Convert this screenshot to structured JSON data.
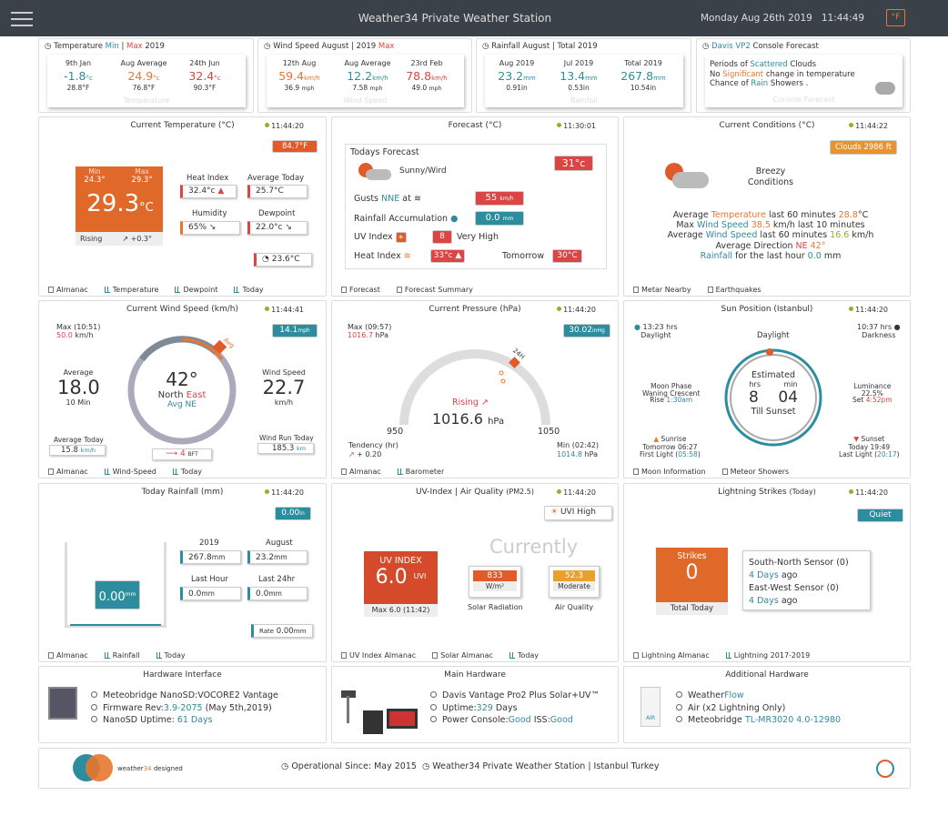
{
  "header": {
    "title": "Weather34 Private Weather Station",
    "date": "Monday Aug 26th 2019",
    "time": "11:44:49",
    "unit": "°F"
  },
  "top": {
    "temp": {
      "title_a": "Temperature",
      "title_min": "Min",
      "title_sep": "|",
      "title_max": "Max",
      "title_year": "2019",
      "c1": {
        "label": "9th Jan",
        "value": "-1.8",
        "unit": "°c",
        "sub": "28.8°F"
      },
      "c2": {
        "label": "Aug Average",
        "value": "24.9",
        "unit": "°c",
        "sub": "76.8°F"
      },
      "c3": {
        "label": "24th Jun",
        "value": "32.4",
        "unit": "°c",
        "sub": "90.3°F"
      },
      "wm": "Temperature"
    },
    "wind": {
      "title": "Wind Speed August | 2019",
      "title_max": "Max",
      "c1": {
        "label": "12th Aug",
        "value": "59.4",
        "unit": "km/h",
        "sub": "36.9",
        "subu": "mph"
      },
      "c2": {
        "label": "Aug Average",
        "value": "12.2",
        "unit": "km/h",
        "sub": "7.58",
        "subu": "mph"
      },
      "c3": {
        "label": "23rd Feb",
        "value": "78.8",
        "unit": "km/h",
        "sub": "49.0",
        "subu": "mph"
      },
      "wm": "Wind Speed"
    },
    "rain": {
      "title": "Rainfall August | Total 2019",
      "c1": {
        "label": "Aug 2019",
        "value": "23.2",
        "unit": "mm",
        "sub": "0.91in"
      },
      "c2": {
        "label": "Jul 2019",
        "value": "13.4",
        "unit": "mm",
        "sub": "0.53in"
      },
      "c3": {
        "label": "Total 2019",
        "value": "267.8",
        "unit": "mm",
        "sub": "10.54in"
      },
      "wm": "Rainfall"
    },
    "console": {
      "title_a": "Davis VP2",
      "title_b": "Console Forecast",
      "l1a": "Periods of",
      "l1b": "Scattered",
      "l1c": "Clouds",
      "l2a": "No",
      "l2b": "Significant",
      "l2c": "change in temperature",
      "l3a": "Chance of",
      "l3b": "Rain",
      "l3c": "Showers .",
      "wm": "Console Forecast"
    }
  },
  "p_temp": {
    "title": "Current Temperature (°C)",
    "time": "11:44:20",
    "badge": "84.7°F",
    "min_l": "Min",
    "min_v": "24.3°",
    "max_l": "Max",
    "max_v": "29.3°",
    "cur": "29.3",
    "cur_u": "°C",
    "trend": "Rising",
    "trend_v": "+0.3°",
    "hi_l": "Heat Index",
    "hi_v": "32.4°c",
    "avg_l": "Average Today",
    "avg_v": "25.7°C",
    "hum_l": "Humidity",
    "hum_v": "65%",
    "dew_l": "Dewpoint",
    "dew_v": "22.0°c",
    "feel_v": "23.6°C",
    "links": [
      "Almanac",
      "Temperature",
      "Dewpoint",
      "Today"
    ]
  },
  "p_fc": {
    "title": "Forecast (°C)",
    "time": "11:30:01",
    "today": "Todays Forecast",
    "desc": "Sunny/Wird",
    "temp": "31°c",
    "gust_l": "Gusts",
    "gust_d": "NNE",
    "gust_at": "at",
    "gust_v": "55",
    "gust_u": "km/h",
    "rain_l": "Rainfall Accumulation",
    "rain_v": "0.0",
    "rain_u": "mm",
    "uv_l": "UV Index",
    "uv_v": "8",
    "uv_d": "Very High",
    "hi_l": "Heat Index",
    "hi_v": "33°c",
    "tom_l": "Tomorrow",
    "tom_v": "30°C",
    "links": [
      "Forecast",
      "Forecast Summary"
    ]
  },
  "p_cond": {
    "title": "Current Conditions (°C)",
    "time": "11:44:22",
    "badge": "Clouds 2986 ft",
    "desc1": "Breezy",
    "desc2": "Conditions",
    "l1a": "Average",
    "l1b": "Temperature",
    "l1c": "last 60 minutes",
    "l1d": "28.8",
    "l1e": "°C",
    "l2a": "Max",
    "l2b": "Wind Speed",
    "l2c": "38.5",
    "l2d": "km/h last 10 minutes",
    "l3a": "Average",
    "l3b": "Wind Speed",
    "l3c": "last 60 minutes",
    "l3d": "16.6",
    "l3e": "km/h",
    "l4a": "Average Direction",
    "l4b": "NE",
    "l4c": "42°",
    "l5a": "Rainfall",
    "l5b": "for the last hour",
    "l5c": "0.0",
    "l5d": "mm",
    "links": [
      "Metar Nearby",
      "Earthquakes"
    ]
  },
  "p_wind": {
    "title": "Current Wind Speed (km/h)",
    "time": "11:44:41",
    "badge": "14.1",
    "badge_u": "mph",
    "max_l": "Max (10:51)",
    "max_v": "50.0",
    "max_u": "km/h",
    "avg_l": "Average",
    "avg_v": "18.0",
    "avg_s": "10 Min",
    "dir_v": "42°",
    "dir_a": "North",
    "dir_b": "East",
    "dir_avg": "Avg NE",
    "avgtag": "Avg",
    "ws_l": "Wind Speed",
    "ws_v": "22.7",
    "ws_u": "km/h",
    "at_l": "Average Today",
    "at_v": "15.8",
    "at_u": "km/h",
    "bft": "4",
    "bft_u": "BFT",
    "run_l": "Wind Run Today",
    "run_v": "185.3",
    "run_u": "km",
    "links": [
      "Almanac",
      "Wind-Speed",
      "Today"
    ]
  },
  "p_press": {
    "title": "Current Pressure (hPa)",
    "time": "11:44:20",
    "badge": "30.02",
    "badge_u": "inHg",
    "max_l": "Max (09:57)",
    "max_v": "1016.7",
    "max_u": "hPa",
    "trend": "Rising",
    "val": "1016.6",
    "unit": "hPa",
    "lo": "950",
    "hi": "1050",
    "tag": "24H",
    "ten_l": "Tendency (hr)",
    "ten_v": "+ 0.20",
    "min_l": "Min (02:42)",
    "min_v": "1014.8",
    "min_u": "hPa",
    "links": [
      "Almanac",
      "Barometer"
    ]
  },
  "p_sun": {
    "title": "Sun Position (Istanbul)",
    "time": "11:44:20",
    "dl_v": "13:23 hrs",
    "dl_l": "Daylight",
    "dk_v": "10:37 hrs",
    "dk_l": "Darkness",
    "daylight": "Daylight",
    "est": "Estimated",
    "hrs": "hrs",
    "min": "min",
    "h": "8",
    "m": "04",
    "till": "Till Sunset",
    "moon_l": "Moon Phase",
    "moon_v": "Waning Crescent",
    "rise_l": "Rise",
    "rise_v": "1:30am",
    "lum_l": "Luminance",
    "lum_v": "22.5%",
    "set_l": "Set",
    "set_v": "4:52pm",
    "sr_l": "Sunrise",
    "sr_v": "Tomorrow 06:27",
    "fl_l": "First Light",
    "fl_v": "05:58",
    "ss_l": "Sunset",
    "ss_v": "Today 19:49",
    "ll_l": "Last Light",
    "ll_v": "20:17",
    "links": [
      "Moon Information",
      "Meteor Showers"
    ]
  },
  "p_rain": {
    "title": "Today Rainfall (mm)",
    "time": "11:44:20",
    "badge": "0.00",
    "badge_u": "in",
    "gauge": "0.00",
    "gauge_u": "mm",
    "y_l": "2019",
    "y_v": "267.8",
    "m_l": "August",
    "m_v": "23.2",
    "lh_l": "Last Hour",
    "lh_v": "0.0",
    "l24_l": "Last 24hr",
    "l24_v": "0.0",
    "u": "mm",
    "rate_l": "Rate",
    "rate_v": "0.00",
    "links": [
      "Almanac",
      "Rainfall",
      "Today"
    ]
  },
  "p_uv": {
    "title": "UV-Index | Air Quality",
    "title_s": "(PM2.5)",
    "time": "11:44:20",
    "badge": "UVI High",
    "cur": "Currently",
    "uv_l": "UV INDEX",
    "uv_v": "6.0",
    "uv_u": "UVI",
    "uv_max": "Max 6.0 (11:42)",
    "sr_v": "833",
    "sr_u": "W/m²",
    "sr_l": "Solar Radiation",
    "aq_v": "52.3",
    "aq_s": "Moderate",
    "aq_l": "Air Quality",
    "links": [
      "UV Index Almanac",
      "Solar Almanac",
      "Today"
    ]
  },
  "p_light": {
    "title": "Lightning Strikes",
    "title_s": "(Today)",
    "time": "11:44:20",
    "badge": "Quiet",
    "strikes_l": "Strikes",
    "strikes_v": "0",
    "total": "Total Today",
    "sn": "South-North Sensor (0)",
    "sn_d": "4 Days",
    "ago": "ago",
    "ew": "East-West Sensor (0)",
    "ew_d": "4 Days",
    "links": [
      "Lightning Almanac",
      "Lightning 2017-2019"
    ]
  },
  "hw1": {
    "title": "Hardware Interface",
    "l1": "Meteobridge NanoSD:VOCORE2 Vantage",
    "l2a": "Firmware Rev:",
    "l2b": "3.9-2075",
    "l2c": "(May 5th,2019)",
    "l3a": "NanoSD Uptime:",
    "l3b": "61 Days"
  },
  "hw2": {
    "title": "Main Hardware",
    "l1": "Davis Vantage Pro2 Plus Solar+UV™",
    "l2a": "Uptime:",
    "l2b": "329",
    "l2c": "Days",
    "l3a": "Power Console:",
    "l3b": "Good",
    "l3c": "ISS:",
    "l3d": "Good"
  },
  "hw3": {
    "title": "Additional Hardware",
    "l1a": "Weather",
    "l1b": "Flow",
    "l2": "Air (x2 Lightning Only)",
    "l3a": "Meteobridge",
    "l3b": "TL-MR3020 4.0-12980",
    "air": "AIR"
  },
  "footer": {
    "brand_a": "weather",
    "brand_b": "34",
    "brand_c": "designed",
    "since": "Operational Since: May 2015",
    "station": "Weather34 Private Weather Station | Istanbul Turkey"
  },
  "colors": {
    "header": "#3b4148",
    "accent": "#e8772e",
    "teal": "#2c8d9f",
    "red": "#d44",
    "green": "#90b12a"
  }
}
